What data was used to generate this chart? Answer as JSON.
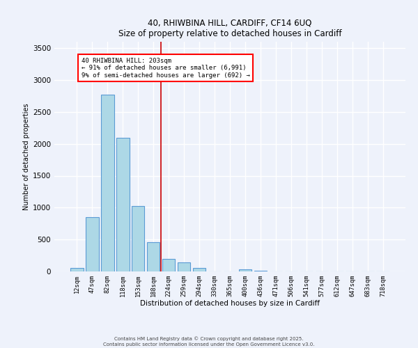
{
  "title_line1": "40, RHIWBINA HILL, CARDIFF, CF14 6UQ",
  "title_line2": "Size of property relative to detached houses in Cardiff",
  "xlabel": "Distribution of detached houses by size in Cardiff",
  "ylabel": "Number of detached properties",
  "bar_labels": [
    "12sqm",
    "47sqm",
    "82sqm",
    "118sqm",
    "153sqm",
    "188sqm",
    "224sqm",
    "259sqm",
    "294sqm",
    "330sqm",
    "365sqm",
    "400sqm",
    "436sqm",
    "471sqm",
    "506sqm",
    "541sqm",
    "577sqm",
    "612sqm",
    "647sqm",
    "683sqm",
    "718sqm"
  ],
  "bar_values": [
    50,
    850,
    2775,
    2100,
    1030,
    460,
    200,
    145,
    60,
    0,
    0,
    30,
    15,
    5,
    0,
    0,
    0,
    0,
    0,
    0,
    0
  ],
  "bar_color": "#add8e6",
  "bar_edge_color": "#5b9bd5",
  "vline_x": 5.5,
  "vline_color": "#cc0000",
  "annotation_line1": "40 RHIWBINA HILL: 203sqm",
  "annotation_line2": "← 91% of detached houses are smaller (6,991)",
  "annotation_line3": "9% of semi-detached houses are larger (692) →",
  "ylim": [
    0,
    3600
  ],
  "yticks": [
    0,
    500,
    1000,
    1500,
    2000,
    2500,
    3000,
    3500
  ],
  "bg_color": "#eef2fb",
  "grid_color": "#ffffff",
  "footer_line1": "Contains HM Land Registry data © Crown copyright and database right 2025.",
  "footer_line2": "Contains public sector information licensed under the Open Government Licence v3.0."
}
